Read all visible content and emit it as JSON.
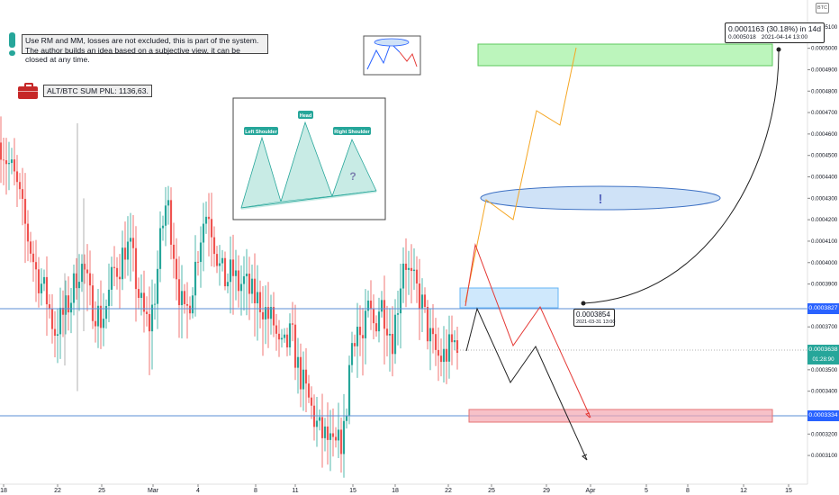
{
  "symbol_badge": "BTC",
  "notes": {
    "disclaimer_line1": "Use RM and MM, losses are not excluded, this is part of the system.",
    "disclaimer_line2": "The author builds an idea based on a subjective view, it can be closed at any time.",
    "pnl": "ALT/BTC SUM PNL: 1136,63."
  },
  "head_shoulders": {
    "left_shoulder": "Left Shoulder",
    "head": "Head",
    "right_shoulder": "Right Shoulder",
    "question": "?"
  },
  "target_info": {
    "change": "0.0001163 (30.18%) in 14d",
    "price": "0.0005018",
    "datetime": "2021-04-14 13:00"
  },
  "point_info": {
    "price": "0.0003854",
    "datetime": "2021-03-31 13:00"
  },
  "exclamation": "!",
  "price_tags": {
    "upper_line": "0.0003827",
    "last_price": "0.0003638",
    "countdown": "01:28:90",
    "lower_line": "0.0003334"
  },
  "colors": {
    "bull": "#26a69a",
    "bear": "#ef5350",
    "target_zone": "#90ee90",
    "stop_zone": "#f4a7b0",
    "buy_zone": "#bbdefb",
    "line_blue": "#5b8fd6",
    "path_orange": "#f5a623",
    "path_red": "#e53935",
    "path_black": "#222222"
  },
  "chart_data": {
    "type": "candlestick",
    "y_axis": {
      "range": [
        0.000305,
        0.00052
      ],
      "ticks": [
        "0.0005100",
        "0.0005000",
        "0.0004900",
        "0.0004800",
        "0.0004700",
        "0.0004600",
        "0.0004500",
        "0.0004400",
        "0.0004300",
        "0.0004200",
        "0.0004100",
        "0.0004000",
        "0.0003900",
        "0.0003700",
        "0.0003600",
        "0.0003500",
        "0.0003400",
        "0.0003300",
        "0.0003200",
        "0.0003100"
      ]
    },
    "x_axis": {
      "ticks": [
        "18",
        "22",
        "25",
        "Mar",
        "4",
        "8",
        "11",
        "15",
        "18",
        "22",
        "25",
        "29",
        "Apr",
        "5",
        "8",
        "12",
        "15"
      ]
    },
    "close_path": [
      0.000456,
      0.000448,
      0.000442,
      0.000432,
      0.000418,
      0.000407,
      0.000395,
      0.000389,
      0.000381,
      0.000368,
      0.000373,
      0.000378,
      0.000385,
      0.000398,
      0.000397,
      0.000383,
      0.000378,
      0.000373,
      0.000382,
      0.000396,
      0.000399,
      0.000408,
      0.000405,
      0.000388,
      0.000376,
      0.00037,
      0.000386,
      0.000412,
      0.00043,
      0.00041,
      0.000388,
      0.000373,
      0.000385,
      0.000402,
      0.000418,
      0.000426,
      0.00041,
      0.000396,
      0.000391,
      0.000396,
      0.000389,
      0.000391,
      0.000386,
      0.000383,
      0.000381,
      0.000375,
      0.000372,
      0.000358,
      0.00036,
      0.000367,
      0.000352,
      0.000343,
      0.000335,
      0.000326,
      0.00032,
      0.000318,
      0.000312,
      0.000315,
      0.000321,
      0.00036,
      0.000372,
      0.000362,
      0.000378,
      0.00037,
      0.000382,
      0.000375,
      0.000364,
      0.000382,
      0.000405,
      0.000392,
      0.000388,
      0.000381,
      0.000368,
      0.00036,
      0.000355,
      0.000357,
      0.000361,
      0.000364
    ],
    "levels": [
      {
        "label": "upper_line",
        "value": 0.0003827
      },
      {
        "label": "last_price",
        "value": 0.0003638
      },
      {
        "label": "lower_line",
        "value": 0.0003334
      }
    ],
    "zones": [
      {
        "name": "target",
        "from": 0.000495,
        "to": 0.000505
      },
      {
        "name": "buy",
        "from": 0.0003835,
        "to": 0.000392
      },
      {
        "name": "stop",
        "from": 0.0003265,
        "to": 0.000333
      }
    ]
  }
}
